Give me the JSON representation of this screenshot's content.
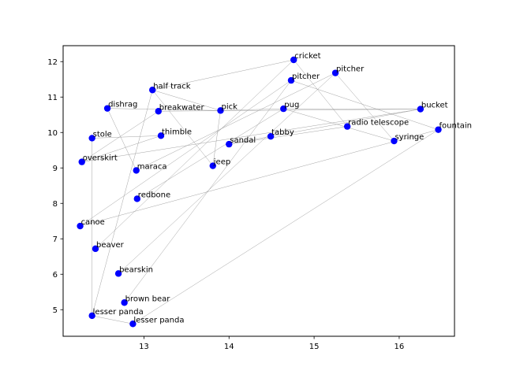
{
  "chart_data": {
    "type": "scatter",
    "title": "",
    "xlabel": "",
    "ylabel": "",
    "xlim": [
      12.05,
      16.65
    ],
    "ylim": [
      4.25,
      12.45
    ],
    "xticks": [
      13,
      14,
      15,
      16
    ],
    "yticks": [
      5,
      6,
      7,
      8,
      9,
      10,
      11,
      12
    ],
    "grid": false,
    "point_color": "#0000ff",
    "edge_color": "#999999",
    "points": [
      {
        "label": "cricket",
        "x": 14.76,
        "y": 12.05
      },
      {
        "label": "pitcher",
        "x": 15.25,
        "y": 11.68
      },
      {
        "label": "pitcher",
        "x": 14.73,
        "y": 11.47
      },
      {
        "label": "half track",
        "x": 13.1,
        "y": 11.2
      },
      {
        "label": "dishrag",
        "x": 12.57,
        "y": 10.68
      },
      {
        "label": "breakwater",
        "x": 13.17,
        "y": 10.6
      },
      {
        "label": "pick",
        "x": 13.9,
        "y": 10.62
      },
      {
        "label": "pug",
        "x": 14.64,
        "y": 10.67
      },
      {
        "label": "bucket",
        "x": 16.25,
        "y": 10.66
      },
      {
        "label": "radio telescope",
        "x": 15.39,
        "y": 10.17
      },
      {
        "label": "fountain",
        "x": 16.46,
        "y": 10.08
      },
      {
        "label": "stole",
        "x": 12.39,
        "y": 9.84
      },
      {
        "label": "thimble",
        "x": 13.2,
        "y": 9.91
      },
      {
        "label": "tabby",
        "x": 14.49,
        "y": 9.89
      },
      {
        "label": "syringe",
        "x": 15.94,
        "y": 9.76
      },
      {
        "label": "sandal",
        "x": 14.0,
        "y": 9.67
      },
      {
        "label": "overskirt",
        "x": 12.27,
        "y": 9.17
      },
      {
        "label": "maraca",
        "x": 12.91,
        "y": 8.93
      },
      {
        "label": "jeep",
        "x": 13.81,
        "y": 9.06
      },
      {
        "label": "redbone",
        "x": 12.92,
        "y": 8.13
      },
      {
        "label": "canoe",
        "x": 12.25,
        "y": 7.36
      },
      {
        "label": "beaver",
        "x": 12.43,
        "y": 6.72
      },
      {
        "label": "bearskin",
        "x": 12.7,
        "y": 6.02
      },
      {
        "label": "brown bear",
        "x": 12.77,
        "y": 5.2
      },
      {
        "label": "lesser panda",
        "x": 12.39,
        "y": 4.83
      },
      {
        "label": "lesser panda",
        "x": 12.87,
        "y": 4.6
      }
    ],
    "edges": [
      [
        0,
        3
      ],
      [
        0,
        9
      ],
      [
        0,
        21
      ],
      [
        1,
        14
      ],
      [
        1,
        17
      ],
      [
        1,
        22
      ],
      [
        2,
        10
      ],
      [
        2,
        20
      ],
      [
        2,
        23
      ],
      [
        3,
        18
      ],
      [
        3,
        6
      ],
      [
        3,
        24
      ],
      [
        4,
        17
      ],
      [
        4,
        6
      ],
      [
        5,
        16
      ],
      [
        5,
        8
      ],
      [
        6,
        7
      ],
      [
        6,
        18
      ],
      [
        7,
        19
      ],
      [
        7,
        8
      ],
      [
        8,
        13
      ],
      [
        8,
        16
      ],
      [
        9,
        15
      ],
      [
        10,
        20
      ],
      [
        10,
        25
      ],
      [
        11,
        12
      ],
      [
        11,
        24
      ],
      [
        12,
        16
      ],
      [
        13,
        15
      ],
      [
        14,
        7
      ],
      [
        24,
        25
      ]
    ]
  }
}
